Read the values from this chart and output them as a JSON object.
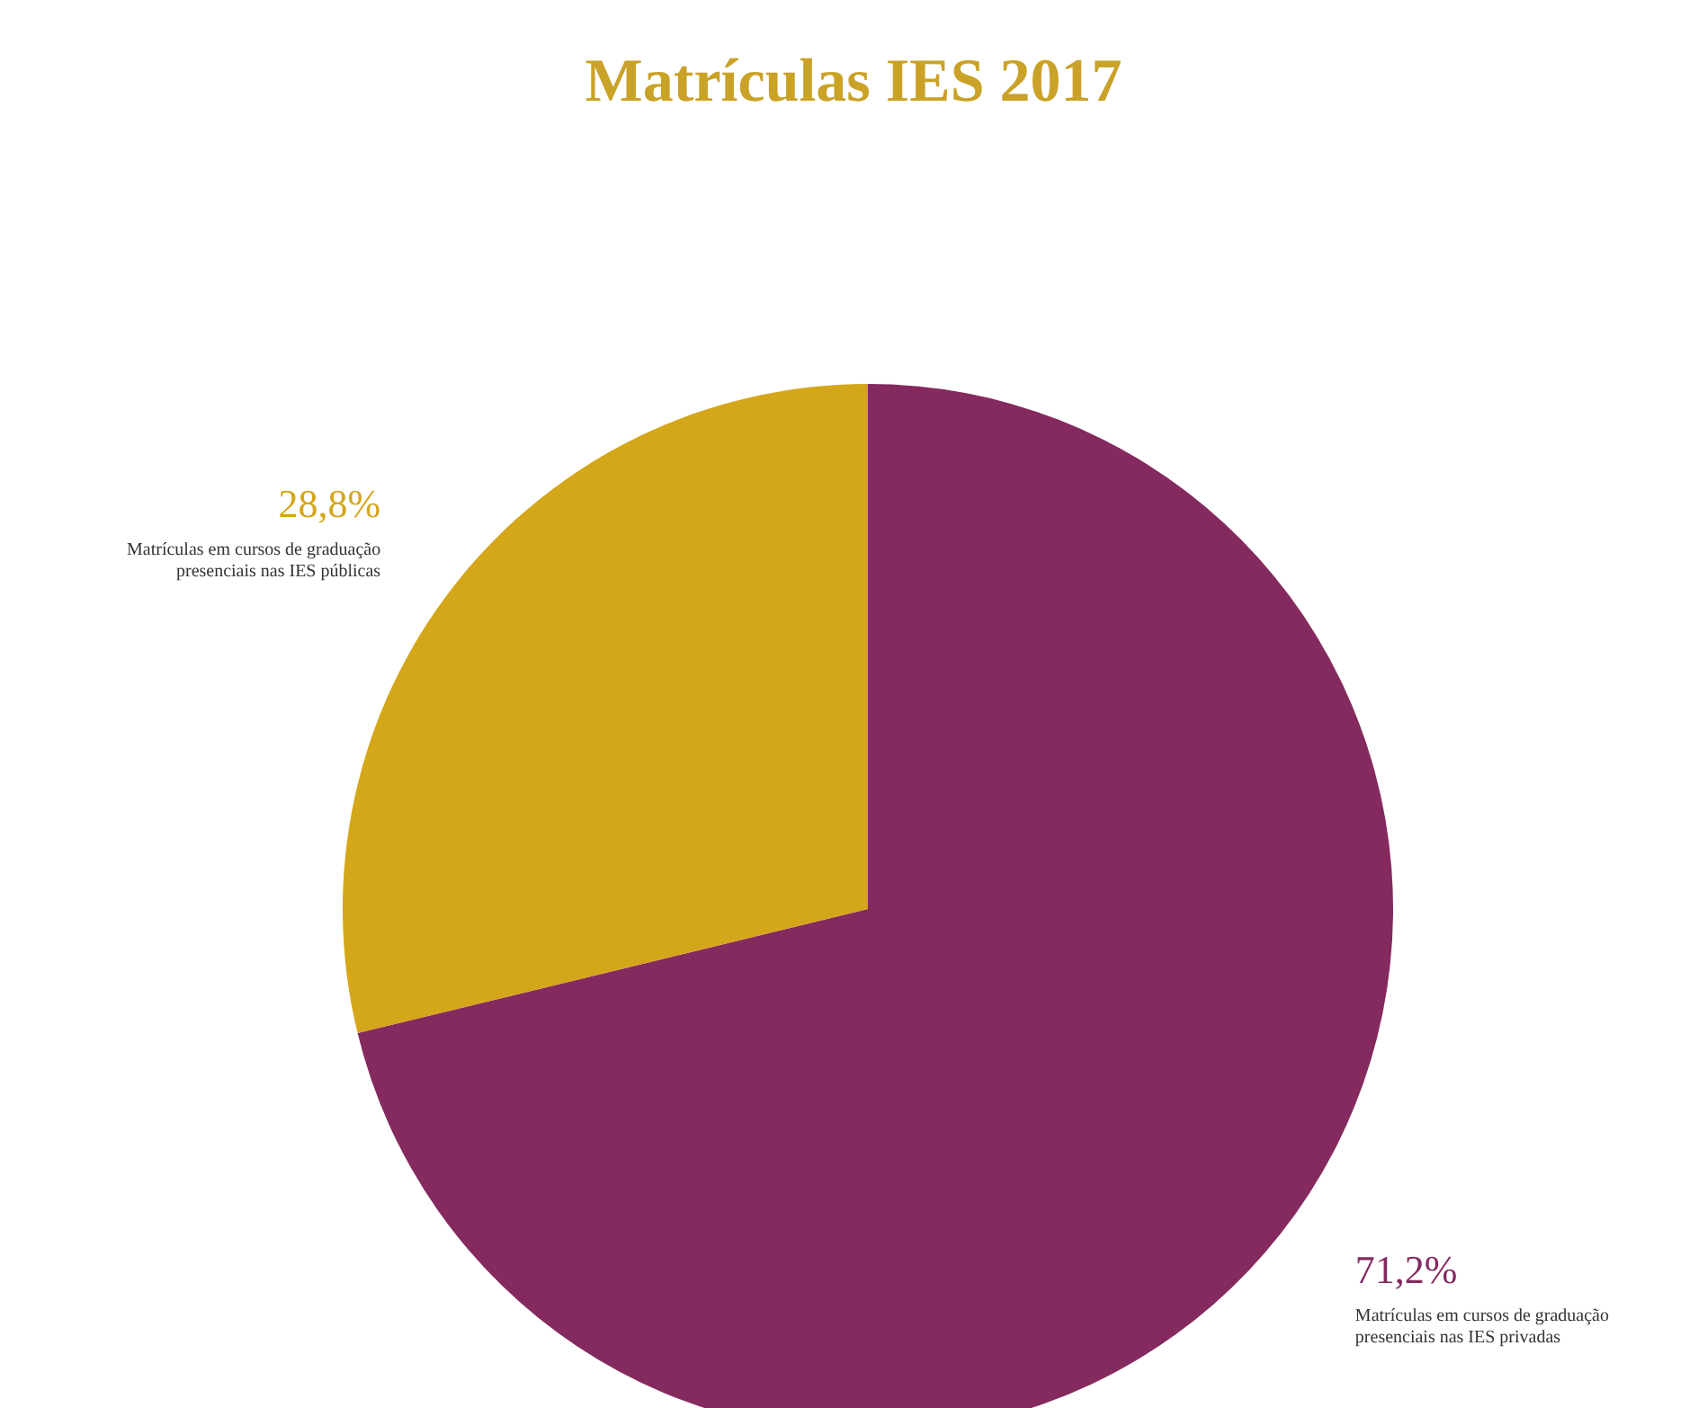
{
  "chart_data": {
    "type": "pie",
    "title": "Matrículas IES 2017",
    "categories": [
      "Matrículas em cursos de graduação presenciais nas IES privadas",
      "Matrículas em cursos de graduação presenciais nas IES públicas"
    ],
    "values": [
      71.2,
      28.8
    ],
    "value_labels": [
      "71,2%",
      "28,8%"
    ],
    "colors": [
      "#842a5f",
      "#d4a61a"
    ]
  }
}
